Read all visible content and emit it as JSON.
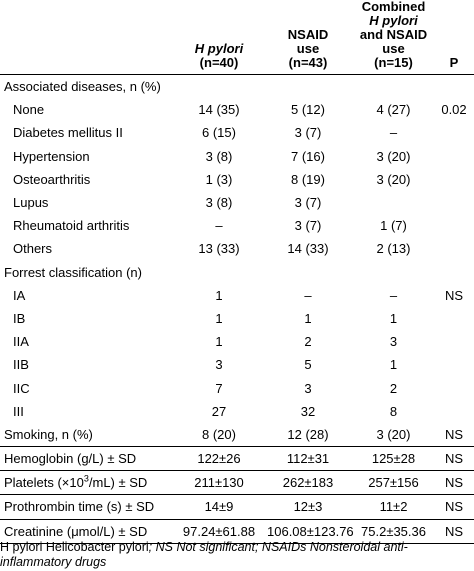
{
  "header": {
    "col0": "",
    "col1_italic": "H pylori",
    "col1_n": "(n=40)",
    "col2_line1": "NSAID",
    "col2_line2": "use",
    "col2_n": "(n=43)",
    "col3_line1": "Combined",
    "col3_italic": "H pylori",
    "col3_line3": "and NSAID use",
    "col3_n": "(n=15)",
    "col4": "P"
  },
  "rows": [
    {
      "label": "Associated diseases, n (%)",
      "c1": "",
      "c2": "",
      "c3": "",
      "p": ""
    },
    {
      "label": "None",
      "c1": "14 (35)",
      "c2": "5 (12)",
      "c3": "4 (27)",
      "p": "0.02"
    },
    {
      "label": "Diabetes mellitus II",
      "c1": "6 (15)",
      "c2": "3 (7)",
      "c3": "–",
      "p": ""
    },
    {
      "label": "Hypertension",
      "c1": "3 (8)",
      "c2": "7 (16)",
      "c3": "3 (20)",
      "p": ""
    },
    {
      "label": "Osteoarthritis",
      "c1": "1 (3)",
      "c2": "8 (19)",
      "c3": "3 (20)",
      "p": ""
    },
    {
      "label": "Lupus",
      "c1": "3 (8)",
      "c2": "3 (7)",
      "c3": "",
      "p": ""
    },
    {
      "label": "Rheumatoid arthritis",
      "c1": "–",
      "c2": "3 (7)",
      "c3": "1 (7)",
      "p": ""
    },
    {
      "label": "Others",
      "c1": "13 (33)",
      "c2": "14 (33)",
      "c3": "2 (13)",
      "p": ""
    },
    {
      "label": "Forrest classification (n)",
      "c1": "",
      "c2": "",
      "c3": "",
      "p": ""
    },
    {
      "label": "IA",
      "c1": "1",
      "c2": "–",
      "c3": "–",
      "p": "NS"
    },
    {
      "label": "IB",
      "c1": "1",
      "c2": "1",
      "c3": "1",
      "p": ""
    },
    {
      "label": "IIA",
      "c1": "1",
      "c2": "2",
      "c3": "3",
      "p": ""
    },
    {
      "label": "IIB",
      "c1": "3",
      "c2": "5",
      "c3": "1",
      "p": ""
    },
    {
      "label": "IIC",
      "c1": "7",
      "c2": "3",
      "c3": "2",
      "p": ""
    },
    {
      "label": "III",
      "c1": "27",
      "c2": "32",
      "c3": "8",
      "p": ""
    },
    {
      "label": "Smoking, n (%)",
      "c1": "8 (20)",
      "c2": "12 (28)",
      "c3": "3 (20)",
      "p": "NS"
    },
    {
      "label": "Hemoglobin (g/L) ± SD",
      "c1": "122±26",
      "c2": "112±31",
      "c3": "125±28",
      "p": "NS"
    },
    {
      "label_pre": "Platelets (×10",
      "label_sup": "3",
      "label_post": "/mL) ± SD",
      "c1": "211±130",
      "c2": "262±183",
      "c3": "257±156",
      "p": "NS"
    },
    {
      "label": "Prothrombin time (s) ± SD",
      "c1": "14±9",
      "c2": "12±3",
      "c3": "11±2",
      "p": "NS"
    },
    {
      "label": "Creatinine (μmol/L) ± SD",
      "c1": "97.24±61.88",
      "c2": "106.08±123.76",
      "c3": "75.2±35.36",
      "p": "NS"
    }
  ],
  "footnote": {
    "part1": "H pylori Helicobacter pylori",
    "part2": "; NS Not significant; NSAIDs Nonsteroidal anti-inflammatory drugs"
  }
}
